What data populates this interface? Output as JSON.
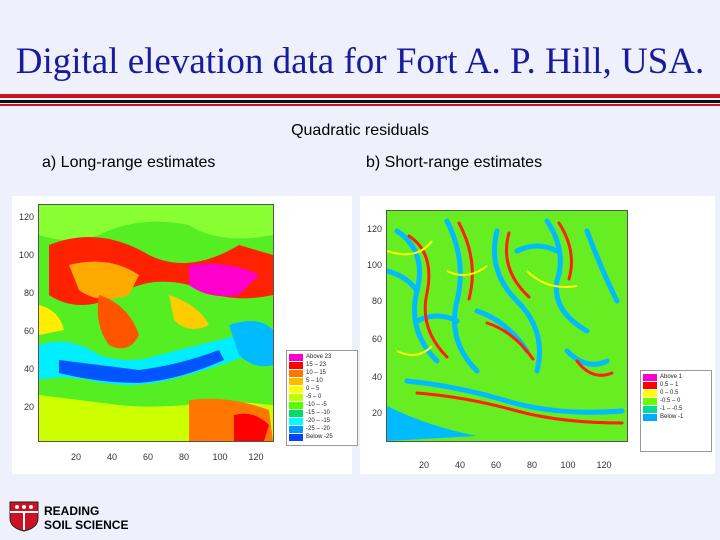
{
  "title": "Digital elevation data for Fort A. P. Hill, USA.",
  "subtitle": "Quadratic residuals",
  "panels": {
    "a": {
      "label": "a) Long-range estimates",
      "yticks": [
        "120",
        "100",
        "80",
        "60",
        "40",
        "20"
      ],
      "xticks": [
        "20",
        "40",
        "60",
        "80",
        "100",
        "120"
      ],
      "legend": [
        {
          "range": "Above 23",
          "color": "#ff00cc"
        },
        {
          "range": "15 – 23",
          "color": "#ff0000"
        },
        {
          "range": "10 – 15",
          "color": "#ff7700"
        },
        {
          "range": "5 – 10",
          "color": "#ffbb00"
        },
        {
          "range": "0 – 5",
          "color": "#ffff00"
        },
        {
          "range": "-5 – 0",
          "color": "#bbff00"
        },
        {
          "range": "-10 – -5",
          "color": "#55ff00"
        },
        {
          "range": "-15 – -10",
          "color": "#00dd66"
        },
        {
          "range": "-20 – -15",
          "color": "#00ffff"
        },
        {
          "range": "-25 – -20",
          "color": "#0099ff"
        },
        {
          "range": "Below -25",
          "color": "#0044ff"
        }
      ]
    },
    "b": {
      "label": "b) Short-range estimates",
      "yticks": [
        "120",
        "100",
        "80",
        "60",
        "40",
        "20"
      ],
      "xticks": [
        "20",
        "40",
        "60",
        "80",
        "100",
        "120"
      ],
      "legend": [
        {
          "range": "Above 1",
          "color": "#ff00cc"
        },
        {
          "range": "0.5 – 1",
          "color": "#ff0000"
        },
        {
          "range": "0 – 0.5",
          "color": "#ffff00"
        },
        {
          "range": "-0.5 – 0",
          "color": "#66ff00"
        },
        {
          "range": "-1 – -0.5",
          "color": "#00dd99"
        },
        {
          "range": "Below -1",
          "color": "#00aaff"
        }
      ]
    }
  },
  "logo": {
    "line1": "READING",
    "line2": "SOIL SCIENCE",
    "color": "#cc1122"
  }
}
